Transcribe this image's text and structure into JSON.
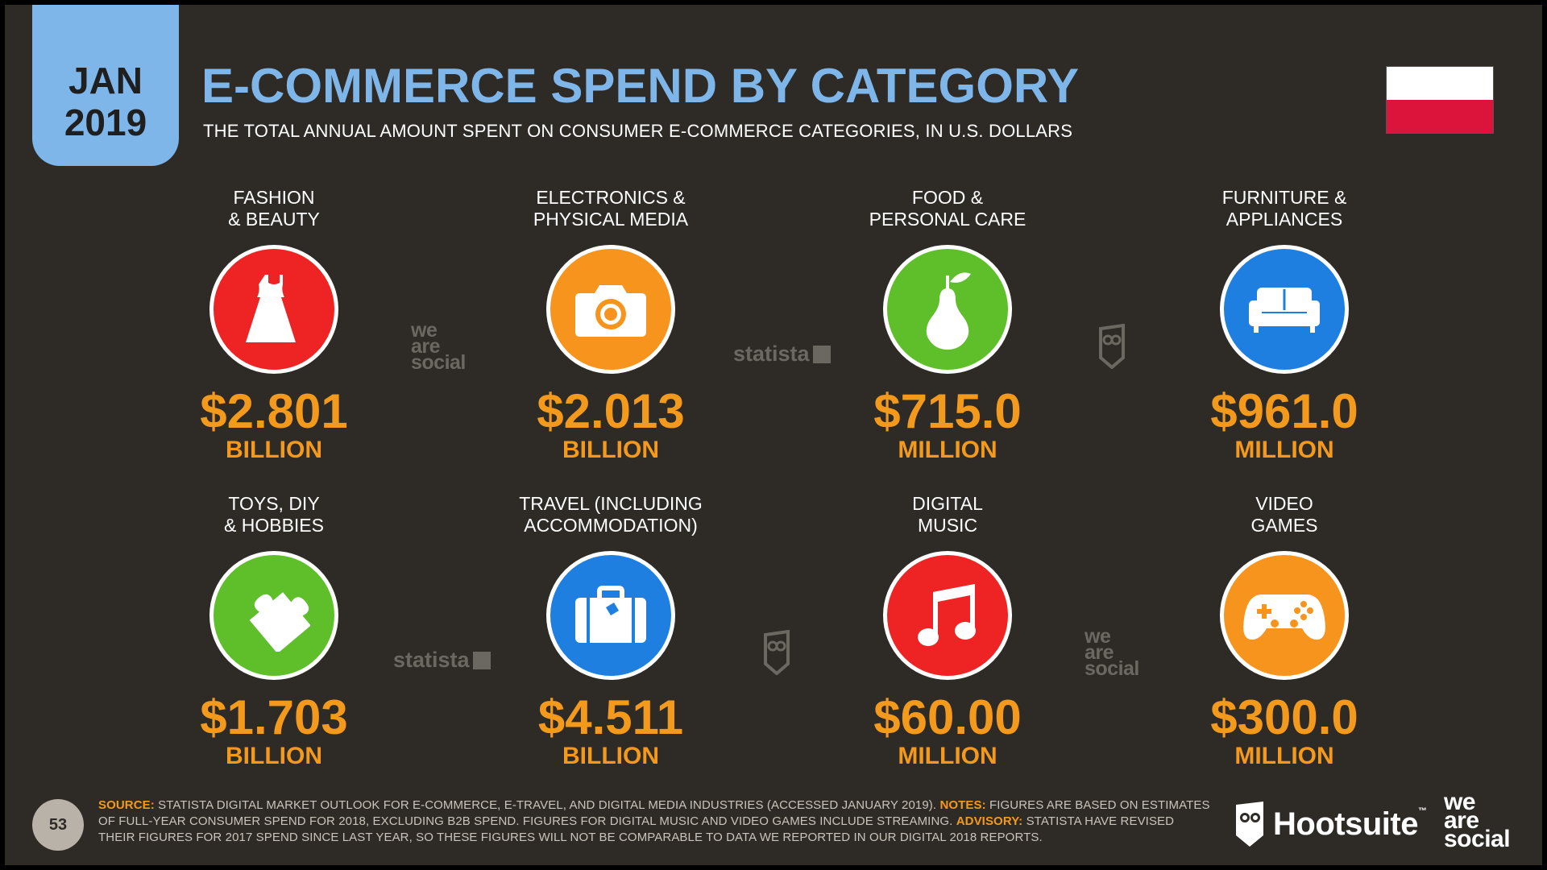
{
  "header": {
    "month": "JAN",
    "year": "2019",
    "title": "E-COMMERCE SPEND BY CATEGORY",
    "subtitle": "THE TOTAL ANNUAL AMOUNT SPENT ON CONSUMER E-COMMERCE CATEGORIES, IN U.S. DOLLARS",
    "flag_colors": [
      "#ffffff",
      "#dc143c"
    ]
  },
  "colors": {
    "accent": "#7fb6ea",
    "value": "#f39a1c",
    "background": "#2e2a26",
    "red": "#ee2424",
    "orange": "#f7941d",
    "green": "#5fbf2a",
    "blue": "#1f7fe0"
  },
  "categories": [
    {
      "label_1": "FASHION",
      "label_2": "& BEAUTY",
      "icon": "dress-icon",
      "color": "#ee2424",
      "value": "$2.801",
      "unit": "BILLION"
    },
    {
      "label_1": "ELECTRONICS &",
      "label_2": "PHYSICAL MEDIA",
      "icon": "camera-icon",
      "color": "#f7941d",
      "value": "$2.013",
      "unit": "BILLION"
    },
    {
      "label_1": "FOOD &",
      "label_2": "PERSONAL CARE",
      "icon": "pear-icon",
      "color": "#5fbf2a",
      "value": "$715.0",
      "unit": "MILLION"
    },
    {
      "label_1": "FURNITURE &",
      "label_2": "APPLIANCES",
      "icon": "sofa-icon",
      "color": "#1f7fe0",
      "value": "$961.0",
      "unit": "MILLION"
    },
    {
      "label_1": "TOYS, DIY",
      "label_2": "& HOBBIES",
      "icon": "puzzle-icon",
      "color": "#5fbf2a",
      "value": "$1.703",
      "unit": "BILLION"
    },
    {
      "label_1": "TRAVEL (INCLUDING",
      "label_2": "ACCOMMODATION)",
      "icon": "suitcase-icon",
      "color": "#1f7fe0",
      "value": "$4.511",
      "unit": "BILLION"
    },
    {
      "label_1": "DIGITAL",
      "label_2": "MUSIC",
      "icon": "music-note-icon",
      "color": "#ee2424",
      "value": "$60.00",
      "unit": "MILLION"
    },
    {
      "label_1": "VIDEO",
      "label_2": "GAMES",
      "icon": "gamepad-icon",
      "color": "#f7941d",
      "value": "$300.0",
      "unit": "MILLION"
    }
  ],
  "watermarks": {
    "we": "we",
    "are": "are",
    "social": "social",
    "statista": "statista"
  },
  "footer": {
    "page_number": "53",
    "source_label": "SOURCE:",
    "source_text": "STATISTA DIGITAL MARKET OUTLOOK FOR E-COMMERCE, E-TRAVEL, AND DIGITAL MEDIA INDUSTRIES (ACCESSED JANUARY 2019).",
    "notes_label": "NOTES:",
    "notes_text": "FIGURES ARE BASED ON ESTIMATES OF FULL-YEAR CONSUMER SPEND FOR 2018, EXCLUDING B2B SPEND. FIGURES FOR DIGITAL MUSIC AND VIDEO GAMES INCLUDE STREAMING.",
    "advisory_label": "ADVISORY:",
    "advisory_text": "STATISTA HAVE REVISED THEIR FIGURES FOR 2017 SPEND SINCE LAST YEAR, SO THESE FIGURES WILL NOT BE COMPARABLE TO DATA WE REPORTED IN OUR DIGITAL 2018 REPORTS.",
    "hootsuite": "Hootsuite",
    "tm": "™",
    "was_1": "we",
    "was_2": "are",
    "was_3": "social"
  }
}
